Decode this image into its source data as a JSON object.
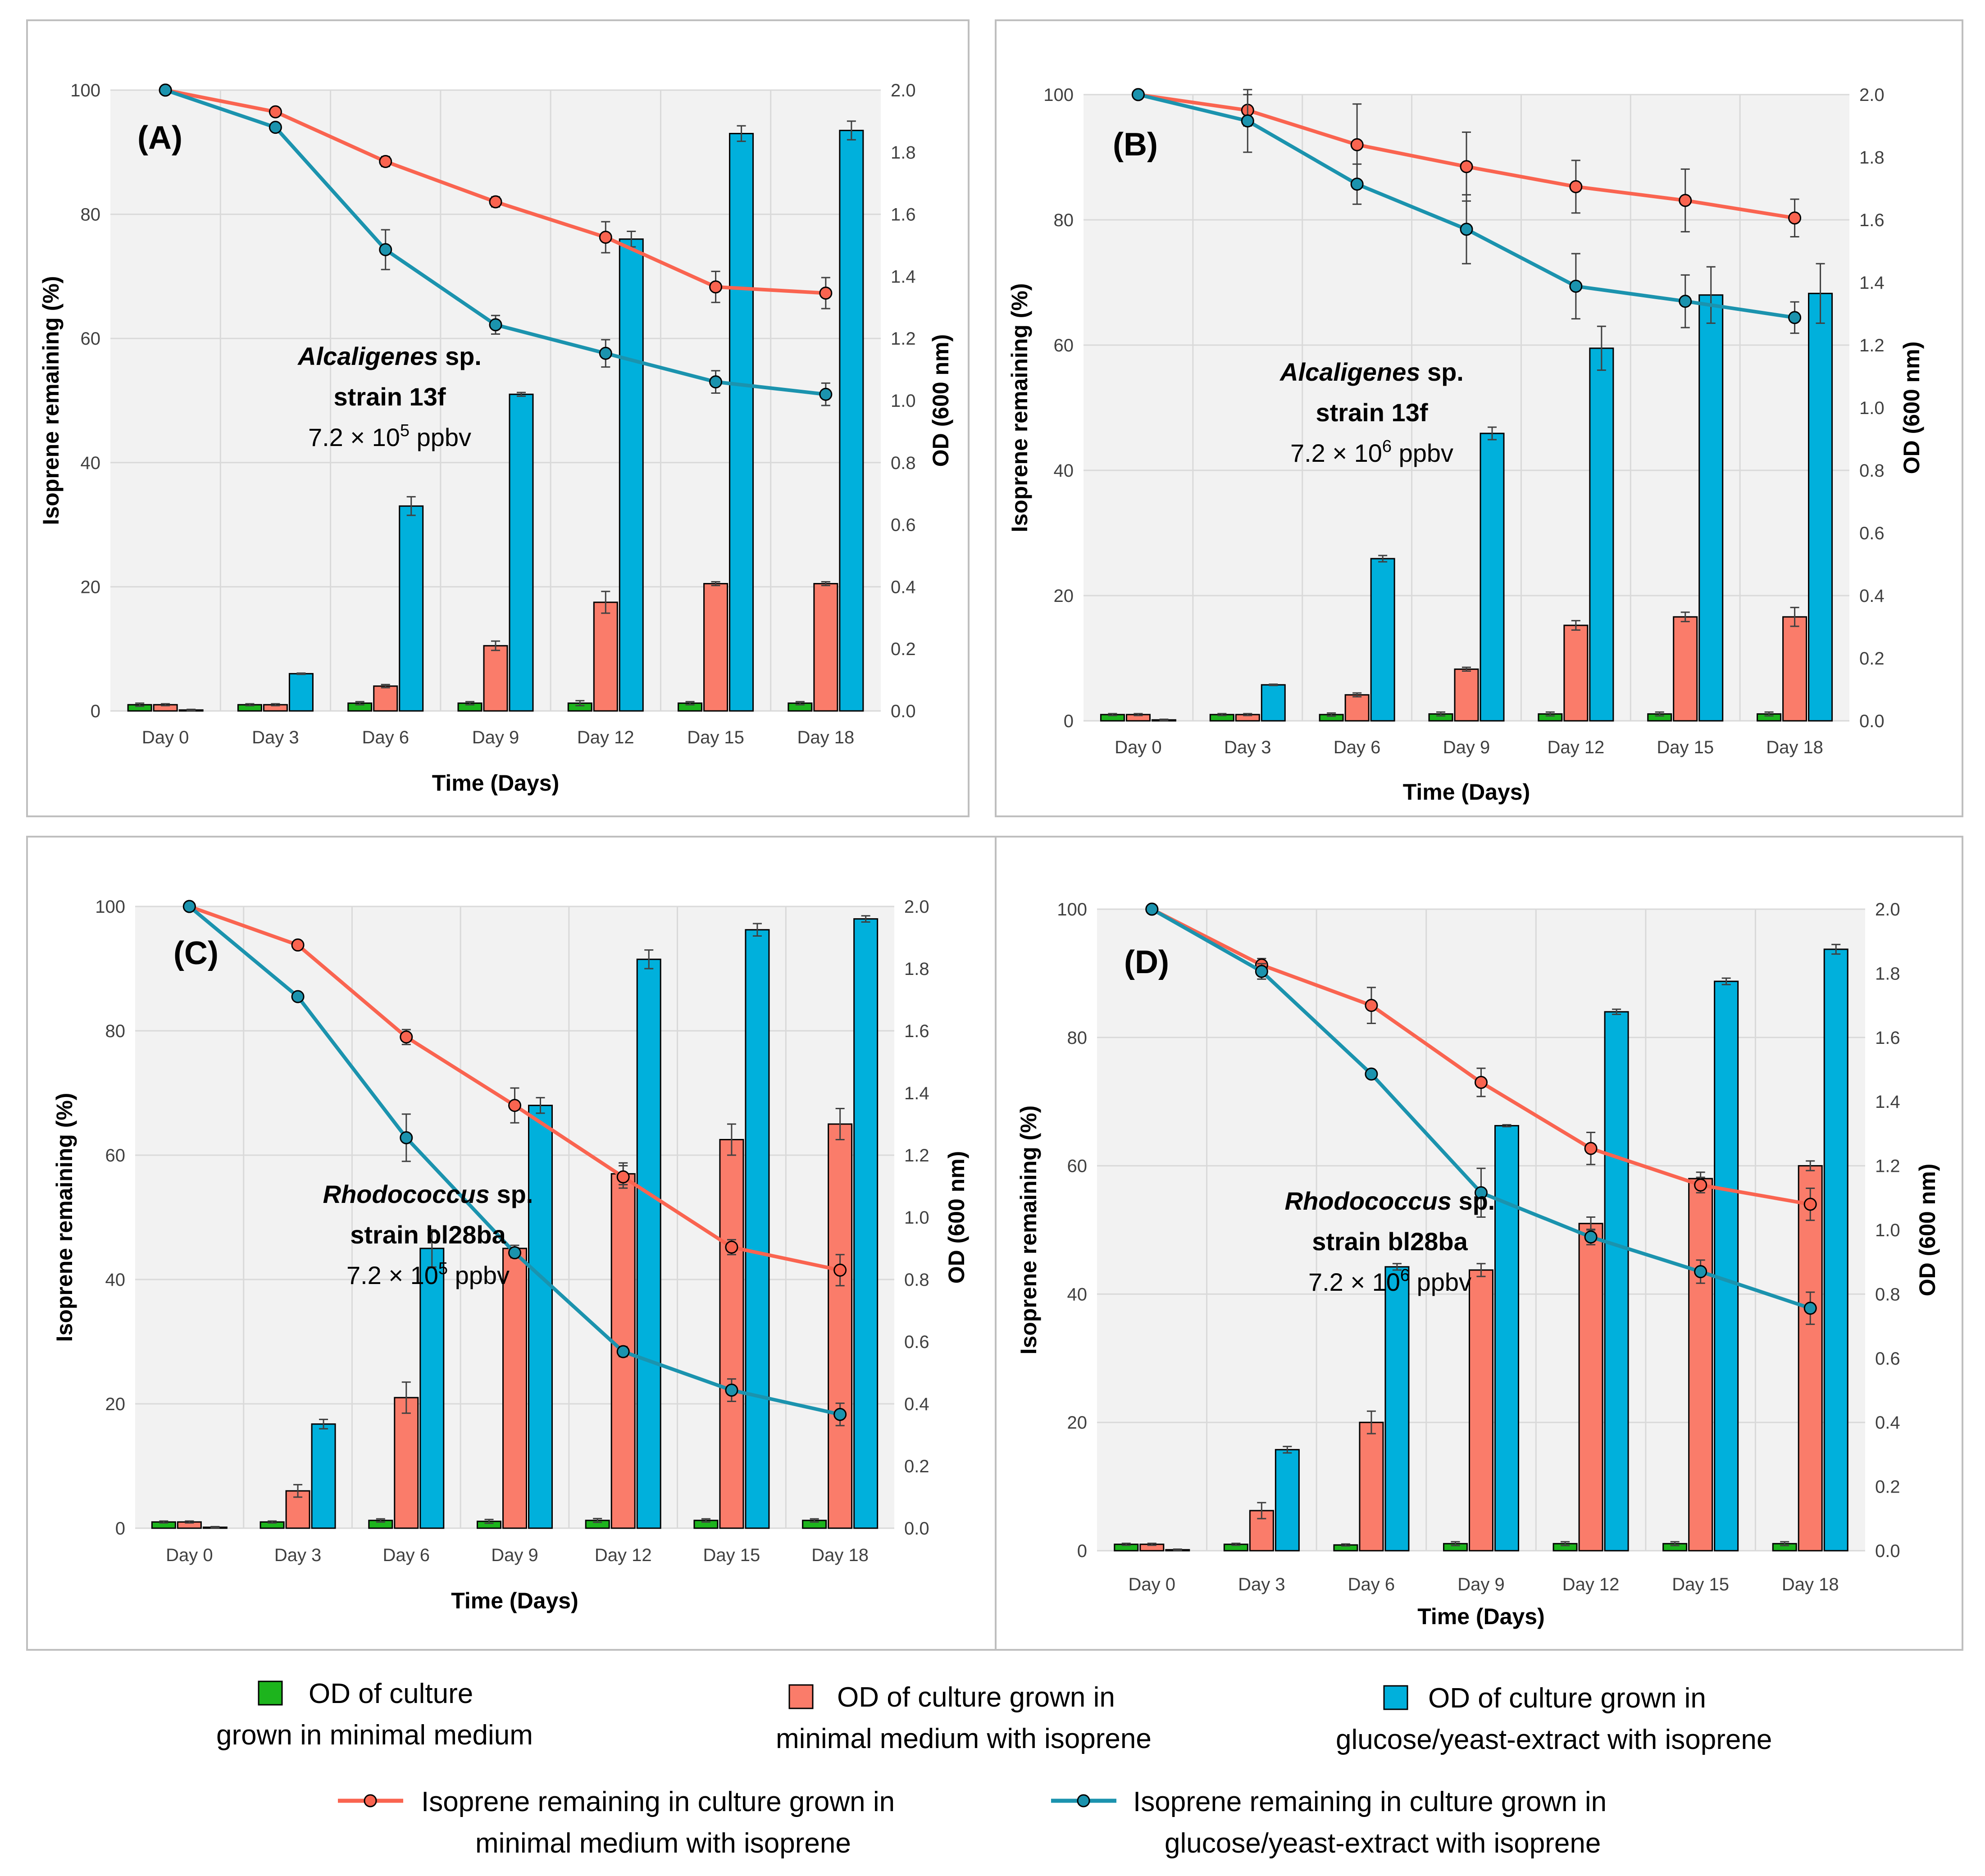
{
  "chart_data": [
    {
      "type": "bar+line",
      "panel_label": "(A)",
      "annotation": {
        "species": "Alcaligenes",
        "sp": " sp.",
        "strain": "strain 13f",
        "conc_base": "7.2 × 10",
        "conc_exp": "5",
        "conc_unit": " ppbv"
      },
      "xlabel": "Time (Days)",
      "ylabel_left": "Isoprene remaining (%)",
      "ylabel_right": "OD (600 nm)",
      "ylim_left": [
        0,
        100
      ],
      "ylim_right": [
        0,
        2.0
      ],
      "ticks_left": [
        "0",
        "20",
        "40",
        "60",
        "80",
        "100"
      ],
      "ticks_right": [
        "0.0",
        "0.2",
        "0.4",
        "0.6",
        "0.8",
        "1.0",
        "1.2",
        "1.4",
        "1.6",
        "1.8",
        "2.0"
      ],
      "categories": [
        "Day 0",
        "Day 3",
        "Day 6",
        "Day 9",
        "Day 12",
        "Day 15",
        "Day 18"
      ],
      "bars": [
        {
          "name": "OD of culture grown in minimal medium",
          "color": "#1db41d",
          "values": [
            0.02,
            0.02,
            0.025,
            0.025,
            0.025,
            0.025,
            0.025
          ],
          "errors": [
            0.005,
            0.003,
            0.005,
            0.005,
            0.008,
            0.005,
            0.005
          ]
        },
        {
          "name": "OD of culture grown in minimal medium with isoprene",
          "color": "#fa7c6a",
          "values": [
            0.02,
            0.02,
            0.08,
            0.21,
            0.35,
            0.41,
            0.41
          ],
          "errors": [
            0.003,
            0.003,
            0.005,
            0.015,
            0.035,
            0.006,
            0.006
          ]
        },
        {
          "name": "OD of culture grown in glucose/yeast-extract with isoprene",
          "color": "#00b0dc",
          "values": [
            0.003,
            0.12,
            0.66,
            1.02,
            1.52,
            1.86,
            1.87
          ],
          "errors": [
            0.002,
            0.002,
            0.03,
            0.006,
            0.025,
            0.025,
            0.03
          ]
        }
      ],
      "lines": [
        {
          "name": "Isoprene remaining in culture grown in minimal medium with isoprene",
          "color": "#fa6450",
          "values": [
            100,
            96.5,
            88.5,
            82,
            76.3,
            68.3,
            67.3
          ],
          "errors": [
            0,
            0,
            0.8,
            0.8,
            2.5,
            2.5,
            2.5
          ]
        },
        {
          "name": "Isoprene remaining in culture grown in glucose/yeast-extract with isoprene",
          "color": "#1b93ae",
          "values": [
            100,
            94,
            74.3,
            62.2,
            57.6,
            53,
            51
          ],
          "errors": [
            0,
            0,
            3.2,
            1.5,
            2.2,
            1.8,
            1.8
          ]
        }
      ]
    },
    {
      "type": "bar+line",
      "panel_label": "(B)",
      "annotation": {
        "species": "Alcaligenes",
        "sp": " sp.",
        "strain": "strain 13f",
        "conc_base": "7.2 × 10",
        "conc_exp": "6",
        "conc_unit": " ppbv"
      },
      "xlabel": "Time (Days)",
      "ylabel_left": "Isoprene remaining (%)",
      "ylabel_right": "OD (600 nm)",
      "ylim_left": [
        0,
        100
      ],
      "ylim_right": [
        0,
        2.0
      ],
      "ticks_left": [
        "0",
        "20",
        "40",
        "60",
        "80",
        "100"
      ],
      "ticks_right": [
        "0.0",
        "0.2",
        "0.4",
        "0.6",
        "0.8",
        "1.0",
        "1.2",
        "1.4",
        "1.6",
        "1.8",
        "2.0"
      ],
      "categories": [
        "Day 0",
        "Day 3",
        "Day 6",
        "Day 9",
        "Day 12",
        "Day 15",
        "Day 18"
      ],
      "bars": [
        {
          "name": "OD of culture grown in minimal medium",
          "color": "#1db41d",
          "values": [
            0.02,
            0.02,
            0.02,
            0.022,
            0.022,
            0.022,
            0.022
          ],
          "errors": [
            0.003,
            0.003,
            0.005,
            0.006,
            0.006,
            0.006,
            0.006
          ]
        },
        {
          "name": "OD of culture grown in minimal medium with isoprene",
          "color": "#fa7c6a",
          "values": [
            0.02,
            0.02,
            0.083,
            0.165,
            0.305,
            0.332,
            0.332
          ],
          "errors": [
            0.003,
            0.003,
            0.006,
            0.006,
            0.015,
            0.015,
            0.03
          ]
        },
        {
          "name": "OD of culture grown in glucose/yeast-extract with isoprene",
          "color": "#00b0dc",
          "values": [
            0.003,
            0.115,
            0.518,
            0.918,
            1.19,
            1.36,
            1.365
          ],
          "errors": [
            0.002,
            0.002,
            0.01,
            0.02,
            0.07,
            0.09,
            0.095
          ]
        }
      ],
      "lines": [
        {
          "name": "Isoprene remaining in culture grown in minimal medium with isoprene",
          "color": "#fa6450",
          "values": [
            100,
            97.5,
            92,
            88.5,
            85.3,
            83.1,
            80.3
          ],
          "errors": [
            0,
            2.5,
            6.5,
            5.5,
            4.2,
            5,
            3
          ]
        },
        {
          "name": "Isoprene remaining in culture grown in glucose/yeast-extract with isoprene",
          "color": "#1b93ae",
          "values": [
            100,
            95.8,
            85.7,
            78.5,
            69.4,
            67,
            64.4
          ],
          "errors": [
            0,
            5,
            3.2,
            5.5,
            5.2,
            4.2,
            2.5
          ]
        }
      ]
    },
    {
      "type": "bar+line",
      "panel_label": "(C)",
      "annotation": {
        "species": "Rhodococcus",
        "sp": " sp.",
        "strain": "strain bl28ba",
        "conc_base": "7.2 × 10",
        "conc_exp": "5",
        "conc_unit": " ppbv"
      },
      "xlabel": "Time (Days)",
      "ylabel_left": "Isoprene remaining (%)",
      "ylabel_right": "OD (600 nm)",
      "ylim_left": [
        0,
        100
      ],
      "ylim_right": [
        0,
        2.0
      ],
      "ticks_left": [
        "0",
        "20",
        "40",
        "60",
        "80",
        "100"
      ],
      "ticks_right": [
        "0.0",
        "0.2",
        "0.4",
        "0.6",
        "0.8",
        "1.0",
        "1.2",
        "1.4",
        "1.6",
        "1.8",
        "2.0"
      ],
      "categories": [
        "Day 0",
        "Day 3",
        "Day 6",
        "Day 9",
        "Day 12",
        "Day 15",
        "Day 18"
      ],
      "bars": [
        {
          "name": "OD of culture grown in minimal medium",
          "color": "#1db41d",
          "values": [
            0.02,
            0.02,
            0.025,
            0.022,
            0.025,
            0.025,
            0.025
          ],
          "errors": [
            0.003,
            0.003,
            0.005,
            0.006,
            0.006,
            0.005,
            0.005
          ]
        },
        {
          "name": "OD of culture grown in minimal medium with isoprene",
          "color": "#fa7c6a",
          "values": [
            0.02,
            0.12,
            0.42,
            0.9,
            1.14,
            1.25,
            1.3
          ],
          "errors": [
            0.003,
            0.02,
            0.05,
            0.01,
            0.035,
            0.05,
            0.05
          ]
        },
        {
          "name": "OD of culture grown in glucose/yeast-extract with isoprene",
          "color": "#00b0dc",
          "values": [
            0.003,
            0.335,
            0.9,
            1.36,
            1.83,
            1.925,
            1.96
          ],
          "errors": [
            0.002,
            0.015,
            0.06,
            0.025,
            0.03,
            0.02,
            0.01
          ]
        }
      ],
      "lines": [
        {
          "name": "Isoprene remaining in culture grown in minimal medium with isoprene",
          "color": "#fa6450",
          "values": [
            100,
            93.8,
            79,
            68,
            56.5,
            45.2,
            41.5
          ],
          "errors": [
            0,
            0,
            1.2,
            2.8,
            1.8,
            1.2,
            2.5
          ]
        },
        {
          "name": "Isoprene remaining in culture grown in glucose/yeast-extract with isoprene",
          "color": "#1b93ae",
          "values": [
            100,
            85.5,
            62.8,
            44.3,
            28.4,
            22.2,
            18.3
          ],
          "errors": [
            0,
            0,
            3.8,
            0.8,
            0.8,
            1.8,
            1.8
          ]
        }
      ]
    },
    {
      "type": "bar+line",
      "panel_label": "(D)",
      "annotation": {
        "species": "Rhodococcus",
        "sp": " sp.",
        "strain": "strain bl28ba",
        "conc_base": "7.2 × 10",
        "conc_exp": "6",
        "conc_unit": " ppbv"
      },
      "xlabel": "Time (Days)",
      "ylabel_left": "Isoprene remaining (%)",
      "ylabel_right": "OD (600 nm)",
      "ylim_left": [
        0,
        100
      ],
      "ylim_right": [
        0,
        2.0
      ],
      "ticks_left": [
        "0",
        "20",
        "40",
        "60",
        "80",
        "100"
      ],
      "ticks_right": [
        "0.0",
        "0.2",
        "0.4",
        "0.6",
        "0.8",
        "1.0",
        "1.2",
        "1.4",
        "1.6",
        "1.8",
        "2.0"
      ],
      "categories": [
        "Day 0",
        "Day 3",
        "Day 6",
        "Day 9",
        "Day 12",
        "Day 15",
        "Day 18"
      ],
      "bars": [
        {
          "name": "OD of culture grown in minimal medium",
          "color": "#1db41d",
          "values": [
            0.02,
            0.02,
            0.018,
            0.022,
            0.022,
            0.022,
            0.022
          ],
          "errors": [
            0.003,
            0.003,
            0.003,
            0.006,
            0.006,
            0.006,
            0.006
          ]
        },
        {
          "name": "OD of culture grown in minimal medium with isoprene",
          "color": "#fa7c6a",
          "values": [
            0.02,
            0.125,
            0.4,
            0.875,
            1.02,
            1.16,
            1.2
          ],
          "errors": [
            0.003,
            0.025,
            0.035,
            0.02,
            0.02,
            0.02,
            0.015
          ]
        },
        {
          "name": "OD of culture grown in glucose/yeast-extract with isoprene",
          "color": "#00b0dc",
          "values": [
            0.003,
            0.315,
            0.885,
            1.325,
            1.68,
            1.775,
            1.875
          ],
          "errors": [
            0.002,
            0.01,
            0.01,
            0.003,
            0.008,
            0.01,
            0.015
          ]
        }
      ],
      "lines": [
        {
          "name": "Isoprene remaining in culture grown in minimal medium with isoprene",
          "color": "#fa6450",
          "values": [
            100,
            91.3,
            85,
            73,
            62.7,
            57,
            54
          ],
          "errors": [
            0,
            1,
            2.8,
            2.2,
            2.5,
            1.2,
            2.5
          ]
        },
        {
          "name": "Isoprene remaining in culture grown in glucose/yeast-extract with isoprene",
          "color": "#1b93ae",
          "values": [
            100,
            90.3,
            74.3,
            55.8,
            48.9,
            43.5,
            37.8
          ],
          "errors": [
            0,
            1.2,
            0,
            3.8,
            1.2,
            1.8,
            2.5
          ]
        }
      ]
    }
  ],
  "legend": {
    "bar_green": {
      "line1": "OD of culture",
      "line2": "grown in minimal medium"
    },
    "bar_red": {
      "line1": "OD of culture grown in",
      "line2": "minimal medium with isoprene"
    },
    "bar_blue": {
      "line1": "OD of culture grown in",
      "line2": "glucose/yeast-extract with isoprene"
    },
    "line_red": {
      "line1": "Isoprene remaining in culture grown in",
      "line2": "minimal medium with isoprene"
    },
    "line_blue": {
      "line1": "Isoprene remaining in culture grown in",
      "line2": "glucose/yeast-extract with isoprene"
    }
  }
}
